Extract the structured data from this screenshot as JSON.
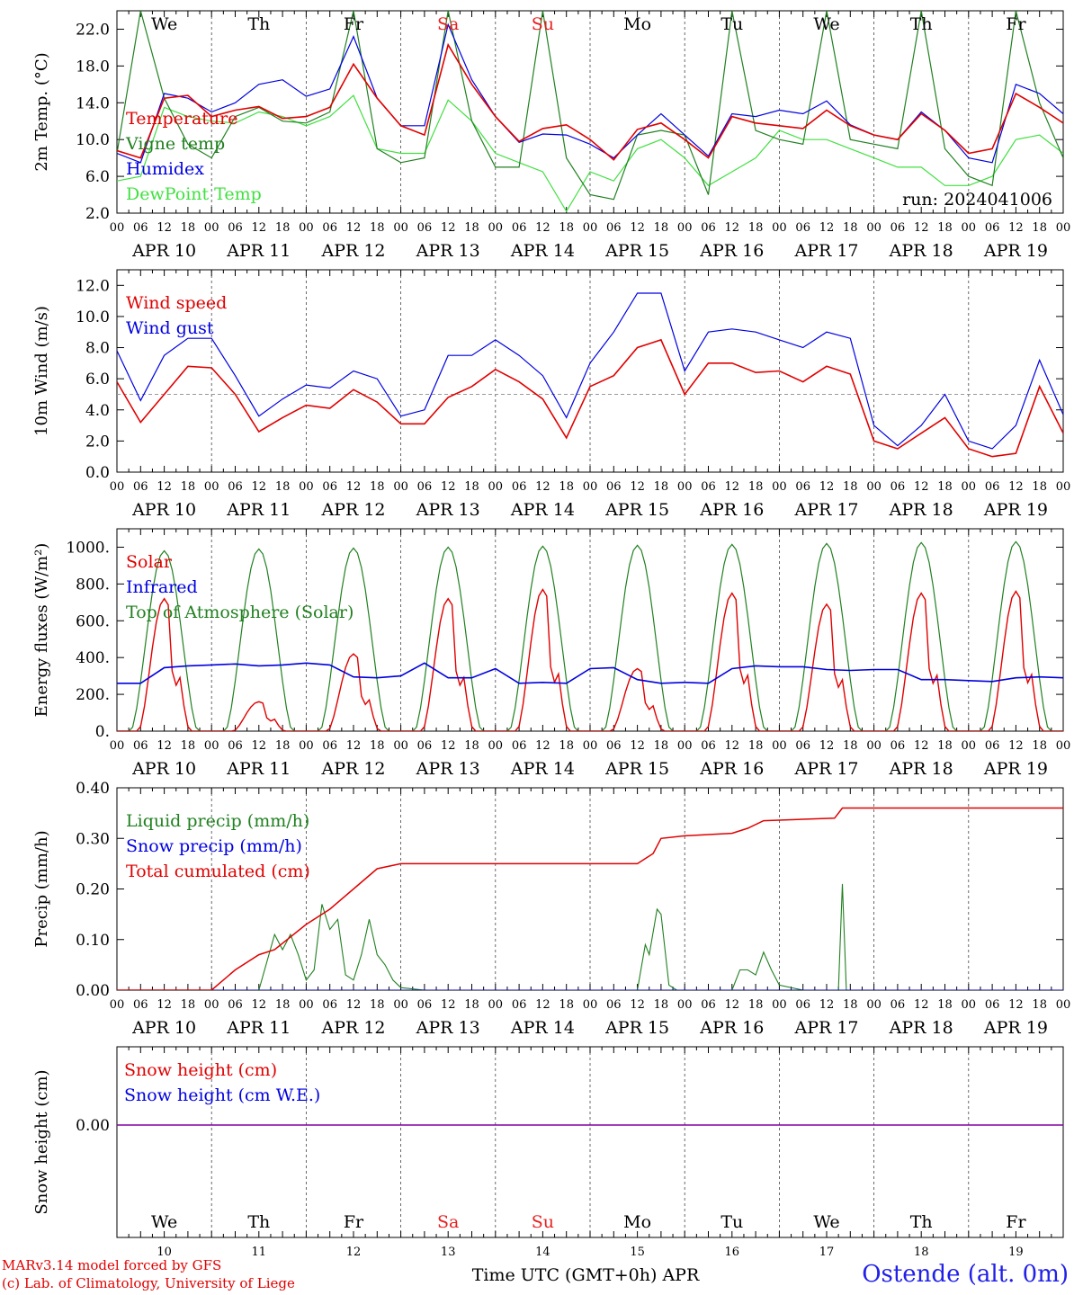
{
  "station": "Ostende (alt. 0m)",
  "credits": [
    "MARv3.14 model forced by GFS",
    "(c) Lab. of Climatology, University of Liege"
  ],
  "run": "run: 2024041006",
  "xaxis": {
    "title": "Time UTC (GMT+0h) APR",
    "hour_ticks": [
      "00",
      "06",
      "12",
      "18"
    ],
    "dates": [
      "APR 10",
      "APR 11",
      "APR 12",
      "APR 13",
      "APR 14",
      "APR 15",
      "APR 16",
      "APR 17",
      "APR 18",
      "APR 19"
    ],
    "day_numbers": [
      "10",
      "11",
      "12",
      "13",
      "14",
      "15",
      "16",
      "17",
      "18",
      "19"
    ],
    "weekdays": [
      "We",
      "Th",
      "Fr",
      "Sa",
      "Su",
      "Mo",
      "Tu",
      "We",
      "Th",
      "Fr"
    ],
    "weekend_color": "#e82020"
  },
  "colors": {
    "red": "#e00000",
    "darkgreen": "#208020",
    "blue": "#0000e0",
    "lightgreen": "#40e040",
    "purple": "#8000a0"
  },
  "chart_data": [
    {
      "type": "line",
      "ylabel": "2m Temp. (°C)",
      "ylim": [
        2,
        24
      ],
      "yticks": [
        "2.0",
        "6.0",
        "10.0",
        "14.0",
        "18.0",
        "22.0"
      ],
      "x_hours": [
        0,
        6,
        12,
        18,
        24,
        30,
        36,
        42,
        48,
        54,
        60,
        66,
        72,
        78,
        84,
        90,
        96,
        102,
        108,
        114,
        120,
        126,
        132,
        138,
        144,
        150,
        156,
        162,
        168,
        174,
        180,
        186,
        192,
        198,
        204,
        210,
        216,
        222,
        228,
        234,
        240
      ],
      "series": [
        {
          "name": "Temperature",
          "color": "#e00000",
          "values": [
            8.8,
            8,
            14.5,
            14.8,
            12.5,
            13.2,
            13.6,
            12.3,
            12.5,
            13.5,
            18.2,
            14.5,
            11.5,
            10.5,
            20.3,
            16,
            12.5,
            9.8,
            11.2,
            11.6,
            10,
            7.8,
            11.1,
            11.8,
            10,
            8,
            12.5,
            11.8,
            11.5,
            11.2,
            13.2,
            11.5,
            10.5,
            10,
            12.8,
            11,
            8.5,
            9,
            15,
            13.5,
            11.8
          ]
        },
        {
          "name": "Vigne temp",
          "color": "#208020",
          "values": [
            8.5,
            24,
            14.5,
            9.5,
            8,
            12.5,
            13.5,
            12,
            11.8,
            13,
            24,
            9,
            7.5,
            8,
            24,
            12,
            7,
            7,
            24,
            8,
            4,
            3.5,
            10.5,
            11,
            10.5,
            4,
            24,
            11,
            10,
            9.5,
            24,
            10,
            9.5,
            9,
            24,
            9,
            6,
            5,
            24,
            14,
            8
          ]
        },
        {
          "name": "Humidex",
          "color": "#0000e0",
          "values": [
            8.5,
            7.5,
            15,
            14.5,
            13,
            14,
            16,
            16.5,
            14.7,
            15.5,
            21.2,
            14.5,
            11.5,
            11.5,
            22.5,
            16.5,
            12.5,
            9.7,
            10.6,
            10.5,
            9.5,
            8,
            10.5,
            12.8,
            10.5,
            8.2,
            12.8,
            12.5,
            13.2,
            12.8,
            14.2,
            11.6,
            10.5,
            10,
            13,
            11,
            8,
            7.5,
            16,
            15,
            12.8
          ]
        },
        {
          "name": "DewPoint Temp",
          "color": "#40e040",
          "values": [
            5.5,
            6,
            13.5,
            12.5,
            12,
            11.8,
            13,
            12.5,
            11.5,
            12.5,
            14.8,
            9,
            8.5,
            8.5,
            14.3,
            12,
            8.5,
            7.5,
            6.5,
            2.2,
            6.5,
            5.5,
            9,
            10,
            8,
            5,
            6.5,
            8,
            11,
            10,
            10,
            9,
            8,
            7,
            7,
            5,
            5,
            6,
            10,
            10.5,
            8.5
          ]
        }
      ]
    },
    {
      "type": "line",
      "ylabel": "10m Wind (m/s)",
      "ylim": [
        0,
        13
      ],
      "yticks": [
        "0.0",
        "2.0",
        "4.0",
        "6.0",
        "8.0",
        "10.0",
        "12.0"
      ],
      "reference_line": 5,
      "x_hours": [
        0,
        6,
        12,
        18,
        24,
        30,
        36,
        42,
        48,
        54,
        60,
        66,
        72,
        78,
        84,
        90,
        96,
        102,
        108,
        114,
        120,
        126,
        132,
        138,
        144,
        150,
        156,
        162,
        168,
        174,
        180,
        186,
        192,
        198,
        204,
        210,
        216,
        222,
        228,
        234,
        240
      ],
      "series": [
        {
          "name": "Wind speed",
          "color": "#e00000",
          "values": [
            5.8,
            3.2,
            5,
            6.8,
            6.7,
            5,
            2.6,
            3.5,
            4.3,
            4.1,
            5.3,
            4.5,
            3.1,
            3.1,
            4.8,
            5.5,
            6.6,
            5.8,
            4.7,
            2.2,
            5.5,
            6.2,
            8,
            8.5,
            5,
            7,
            7,
            6.4,
            6.5,
            5.8,
            6.8,
            6.3,
            2,
            1.5,
            2.5,
            3.5,
            1.5,
            1,
            1.2,
            5.5,
            2.5
          ]
        },
        {
          "name": "Wind gust",
          "color": "#0000e0",
          "values": [
            7.8,
            4.6,
            7.5,
            8.6,
            8.6,
            6.2,
            3.6,
            4.7,
            5.6,
            5.4,
            6.5,
            6,
            3.6,
            4,
            7.5,
            7.5,
            8.5,
            7.5,
            6.2,
            3.5,
            7,
            9,
            11.5,
            11.5,
            6.5,
            9,
            9.2,
            9,
            8.5,
            8,
            9,
            8.6,
            3,
            1.7,
            3,
            5,
            2,
            1.5,
            3,
            7.2,
            3.7
          ]
        }
      ]
    },
    {
      "type": "line",
      "ylabel": "Energy fluxes (W/m²)",
      "ylim": [
        0,
        1100
      ],
      "yticks": [
        "0.",
        "200.",
        "400.",
        "600.",
        "800.",
        "1000."
      ],
      "series": [
        {
          "name": "Solar",
          "color": "#e00000",
          "peaks": [
            720,
            160,
            420,
            720,
            770,
            340,
            750,
            690,
            750,
            760
          ]
        },
        {
          "name": "Infrared",
          "color": "#0000e0",
          "values": [
            260,
            260,
            345,
            355,
            360,
            365,
            355,
            360,
            370,
            360,
            295,
            290,
            300,
            370,
            290,
            290,
            340,
            260,
            265,
            260,
            340,
            345,
            280,
            260,
            265,
            260,
            340,
            355,
            350,
            350,
            335,
            330,
            335,
            335,
            280,
            280,
            275,
            270,
            290,
            295,
            290
          ]
        },
        {
          "name": "Top of Atmosphere (Solar)",
          "color": "#208020",
          "peaks": [
            980,
            990,
            995,
            1000,
            1005,
            1010,
            1015,
            1020,
            1025,
            1030
          ]
        }
      ]
    },
    {
      "type": "line",
      "ylabel": "Precip (mm/h)",
      "ylim": [
        0,
        0.4
      ],
      "yticks": [
        "0.00",
        "0.10",
        "0.20",
        "0.30",
        "0.40"
      ],
      "series": [
        {
          "name": "Liquid precip (mm/h)",
          "color": "#208020",
          "points": [
            [
              0,
              0
            ],
            [
              36,
              0
            ],
            [
              40,
              0.11
            ],
            [
              42,
              0.08
            ],
            [
              44,
              0.11
            ],
            [
              46,
              0.07
            ],
            [
              48,
              0.02
            ],
            [
              50,
              0.04
            ],
            [
              52,
              0.17
            ],
            [
              54,
              0.12
            ],
            [
              56,
              0.14
            ],
            [
              58,
              0.03
            ],
            [
              60,
              0.02
            ],
            [
              62,
              0.07
            ],
            [
              64,
              0.14
            ],
            [
              66,
              0.07
            ],
            [
              68,
              0.05
            ],
            [
              70,
              0.02
            ],
            [
              72,
              0.005
            ],
            [
              78,
              0
            ],
            [
              132,
              0
            ],
            [
              134,
              0.09
            ],
            [
              135,
              0.07
            ],
            [
              137,
              0.16
            ],
            [
              138,
              0.15
            ],
            [
              140,
              0.01
            ],
            [
              142,
              0
            ],
            [
              156,
              0
            ],
            [
              158,
              0.04
            ],
            [
              160,
              0.04
            ],
            [
              162,
              0.03
            ],
            [
              164,
              0.075
            ],
            [
              166,
              0.04
            ],
            [
              168,
              0.01
            ],
            [
              174,
              0
            ],
            [
              183,
              0
            ],
            [
              184,
              0.21
            ],
            [
              185,
              0
            ],
            [
              240,
              0
            ]
          ]
        },
        {
          "name": "Snow precip (mm/h)",
          "color": "#0000e0",
          "points": [
            [
              0,
              0
            ],
            [
              240,
              0
            ]
          ]
        },
        {
          "name": "Total cumulated (cm)",
          "color": "#e00000",
          "points": [
            [
              0,
              0
            ],
            [
              24,
              0
            ],
            [
              30,
              0.04
            ],
            [
              36,
              0.07
            ],
            [
              40,
              0.08
            ],
            [
              48,
              0.13
            ],
            [
              54,
              0.16
            ],
            [
              60,
              0.2
            ],
            [
              66,
              0.24
            ],
            [
              72,
              0.25
            ],
            [
              132,
              0.25
            ],
            [
              136,
              0.27
            ],
            [
              138,
              0.3
            ],
            [
              144,
              0.305
            ],
            [
              156,
              0.31
            ],
            [
              160,
              0.32
            ],
            [
              164,
              0.335
            ],
            [
              182,
              0.34
            ],
            [
              184,
              0.36
            ],
            [
              240,
              0.36
            ]
          ]
        }
      ]
    },
    {
      "type": "line",
      "ylabel": "Snow height (cm)",
      "yticks": [
        "0.00"
      ],
      "series": [
        {
          "name": "Snow height (cm)",
          "color": "#e00000",
          "values": [
            0,
            0
          ]
        },
        {
          "name": "Snow height (cm W.E.)",
          "color": "#0000e0",
          "values": [
            0,
            0
          ]
        }
      ]
    }
  ]
}
